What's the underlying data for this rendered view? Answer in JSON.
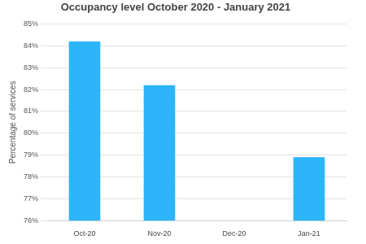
{
  "chart_data": {
    "type": "bar",
    "title": "Occupancy level October 2020 - January 2021",
    "y_label": "Percentage of services",
    "categories": [
      "Oct-20",
      "Nov-20",
      "Dec-20",
      "Jan-21"
    ],
    "values": [
      84.2,
      82.2,
      null,
      78.9
    ],
    "color": "#2cb5fb",
    "ylim": [
      76,
      85
    ],
    "yticks": [
      {
        "value": 76,
        "label": "76%"
      },
      {
        "value": 77,
        "label": "77%"
      },
      {
        "value": 78,
        "label": "78%"
      },
      {
        "value": 79,
        "label": "79%"
      },
      {
        "value": 80,
        "label": "80%"
      },
      {
        "value": 81,
        "label": "81%"
      },
      {
        "value": 82,
        "label": "82%"
      },
      {
        "value": 83,
        "label": "83%"
      },
      {
        "value": 84,
        "label": "84%"
      },
      {
        "value": 85,
        "label": "85%"
      }
    ],
    "grid": true
  }
}
